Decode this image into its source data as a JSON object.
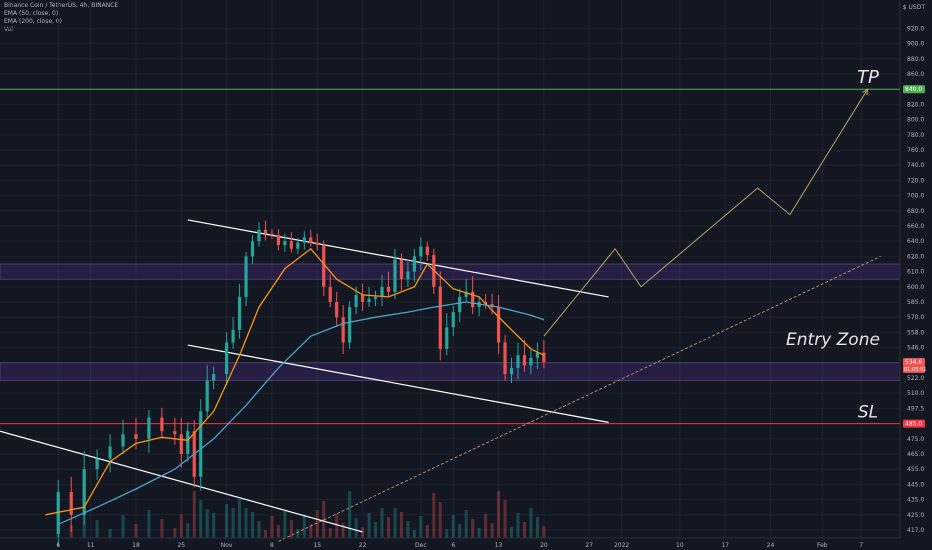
{
  "header": {
    "symbol_line": "Binance Coin / TetherUS, 4h, BINANCE",
    "ema50_line": "EMA (50, close, 0)",
    "ema200_line": "EMA (200, close, 0)",
    "vol_line": "Vol",
    "currency": "USDT"
  },
  "chart_data": {
    "type": "candlestick",
    "symbol": "Binance Coin / TetherUS",
    "timeframe": "4h",
    "exchange": "BINANCE",
    "y_ticks": [
      417.0,
      425.0,
      435.0,
      445.0,
      455.0,
      465.0,
      475.0,
      485.0,
      497.5,
      510.0,
      522.0,
      534.0,
      546.0,
      558.0,
      570.0,
      585.0,
      600.0,
      610.0,
      620.0,
      640.0,
      660.0,
      680.0,
      700.0,
      720.0,
      740.0,
      760.0,
      780.0,
      800.0,
      820.0,
      840.0,
      860.0,
      880.0,
      900.0,
      920.0
    ],
    "x_ticks": [
      "6",
      "11",
      "18",
      "25",
      "Nov",
      "8",
      "15",
      "22",
      "Dec",
      "6",
      "13",
      "20",
      "27",
      "2022",
      "10",
      "17",
      "24",
      "Feb",
      "7"
    ],
    "price_points": [
      [
        "2021-10-04",
        415
      ],
      [
        "2021-10-06",
        440
      ],
      [
        "2021-10-08",
        425
      ],
      [
        "2021-10-10",
        455
      ],
      [
        "2021-10-12",
        462
      ],
      [
        "2021-10-14",
        470
      ],
      [
        "2021-10-16",
        478
      ],
      [
        "2021-10-18",
        475
      ],
      [
        "2021-10-20",
        490
      ],
      [
        "2021-10-22",
        480
      ],
      [
        "2021-10-24",
        478
      ],
      [
        "2021-10-25",
        465
      ],
      [
        "2021-10-26",
        480
      ],
      [
        "2021-10-27",
        450
      ],
      [
        "2021-10-28",
        495
      ],
      [
        "2021-10-29",
        520
      ],
      [
        "2021-10-30",
        525
      ],
      [
        "2021-11-01",
        550
      ],
      [
        "2021-11-02",
        560
      ],
      [
        "2021-11-03",
        590
      ],
      [
        "2021-11-04",
        620
      ],
      [
        "2021-11-05",
        640
      ],
      [
        "2021-11-06",
        655
      ],
      [
        "2021-11-07",
        650
      ],
      [
        "2021-11-08",
        648
      ],
      [
        "2021-11-09",
        635
      ],
      [
        "2021-11-10",
        640
      ],
      [
        "2021-11-11",
        630
      ],
      [
        "2021-11-12",
        638
      ],
      [
        "2021-11-13",
        645
      ],
      [
        "2021-11-14",
        638
      ],
      [
        "2021-11-15",
        635
      ],
      [
        "2021-11-16",
        600
      ],
      [
        "2021-11-17",
        585
      ],
      [
        "2021-11-18",
        570
      ],
      [
        "2021-11-19",
        550
      ],
      [
        "2021-11-20",
        580
      ],
      [
        "2021-11-21",
        592
      ],
      [
        "2021-11-22",
        585
      ],
      [
        "2021-11-23",
        588
      ],
      [
        "2021-11-24",
        590
      ],
      [
        "2021-11-25",
        600
      ],
      [
        "2021-11-26",
        595
      ],
      [
        "2021-11-27",
        618
      ],
      [
        "2021-11-28",
        605
      ],
      [
        "2021-11-29",
        610
      ],
      [
        "2021-11-30",
        620
      ],
      [
        "2021-12-01",
        633
      ],
      [
        "2021-12-02",
        622
      ],
      [
        "2021-12-03",
        600
      ],
      [
        "2021-12-04",
        545
      ],
      [
        "2021-12-05",
        562
      ],
      [
        "2021-12-06",
        575
      ],
      [
        "2021-12-07",
        590
      ],
      [
        "2021-12-08",
        595
      ],
      [
        "2021-12-09",
        580
      ],
      [
        "2021-12-10",
        585
      ],
      [
        "2021-12-11",
        583
      ],
      [
        "2021-12-12",
        580
      ],
      [
        "2021-12-13",
        550
      ],
      [
        "2021-12-14",
        525
      ],
      [
        "2021-12-15",
        530
      ],
      [
        "2021-12-16",
        540
      ],
      [
        "2021-12-17",
        532
      ],
      [
        "2021-12-18",
        538
      ],
      [
        "2021-12-19",
        542
      ],
      [
        "2021-12-20",
        534.6
      ]
    ],
    "ema50_points": [
      [
        "2021-10-04",
        425
      ],
      [
        "2021-10-10",
        430
      ],
      [
        "2021-10-14",
        460
      ],
      [
        "2021-10-18",
        472
      ],
      [
        "2021-10-22",
        476
      ],
      [
        "2021-10-26",
        474
      ],
      [
        "2021-10-30",
        495
      ],
      [
        "2021-11-03",
        540
      ],
      [
        "2021-11-06",
        580
      ],
      [
        "2021-11-10",
        612
      ],
      [
        "2021-11-14",
        630
      ],
      [
        "2021-11-18",
        605
      ],
      [
        "2021-11-22",
        592
      ],
      [
        "2021-11-26",
        590
      ],
      [
        "2021-11-30",
        600
      ],
      [
        "2021-12-02",
        615
      ],
      [
        "2021-12-06",
        598
      ],
      [
        "2021-12-10",
        590
      ],
      [
        "2021-12-14",
        565
      ],
      [
        "2021-12-18",
        545
      ],
      [
        "2021-12-20",
        540
      ]
    ],
    "ema200_points": [
      [
        "2021-10-06",
        420
      ],
      [
        "2021-10-12",
        430
      ],
      [
        "2021-10-18",
        442
      ],
      [
        "2021-10-24",
        455
      ],
      [
        "2021-10-30",
        475
      ],
      [
        "2021-11-04",
        500
      ],
      [
        "2021-11-09",
        530
      ],
      [
        "2021-11-14",
        555
      ],
      [
        "2021-11-19",
        565
      ],
      [
        "2021-11-24",
        570
      ],
      [
        "2021-11-29",
        575
      ],
      [
        "2021-12-03",
        580
      ],
      [
        "2021-12-08",
        585
      ],
      [
        "2021-12-13",
        580
      ],
      [
        "2021-12-18",
        572
      ],
      [
        "2021-12-20",
        568
      ]
    ],
    "current_price": 534.6,
    "countdown": "01:05:51",
    "levels": {
      "tp": 840.0,
      "sl": 485.0
    },
    "zones": [
      {
        "name": "resistance",
        "low": 605,
        "high": 615
      },
      {
        "name": "Entry Zone",
        "low": 520,
        "high": 534
      }
    ],
    "channel_lines": [
      {
        "name": "channel-upper",
        "from": [
          "2021-10-26",
          668
        ],
        "to": [
          "2021-12-30",
          590
        ]
      },
      {
        "name": "channel-lower",
        "from": [
          "2021-10-26",
          548
        ],
        "to": [
          "2021-12-30",
          486
        ]
      },
      {
        "name": "trendline-prior",
        "from": [
          "2021-09-27",
          480
        ],
        "to": [
          "2021-11-22",
          416
        ]
      }
    ],
    "support_trendline": {
      "from": [
        "2021-11-09",
        411
      ],
      "to": [
        "2022-02-10",
        620
      ]
    },
    "projection_path": [
      [
        "2021-12-20",
        555
      ],
      [
        "2021-12-31",
        630
      ],
      [
        "2022-01-04",
        600
      ],
      [
        "2022-01-22",
        710
      ],
      [
        "2022-01-27",
        675
      ],
      [
        "2022-02-08",
        840
      ]
    ],
    "annotations": {
      "tp_label": "TP",
      "entry_label": "Entry Zone",
      "sl_label": "SL"
    },
    "colors": {
      "background": "#131722",
      "up": "#26a69a",
      "down": "#ef5350",
      "ema50": "#f7931a",
      "ema200": "#4fa3c7",
      "tp_line": "#4caf50",
      "sl_line": "#f23645",
      "zone": "#673ab7",
      "projection": "#b8a46a"
    }
  }
}
